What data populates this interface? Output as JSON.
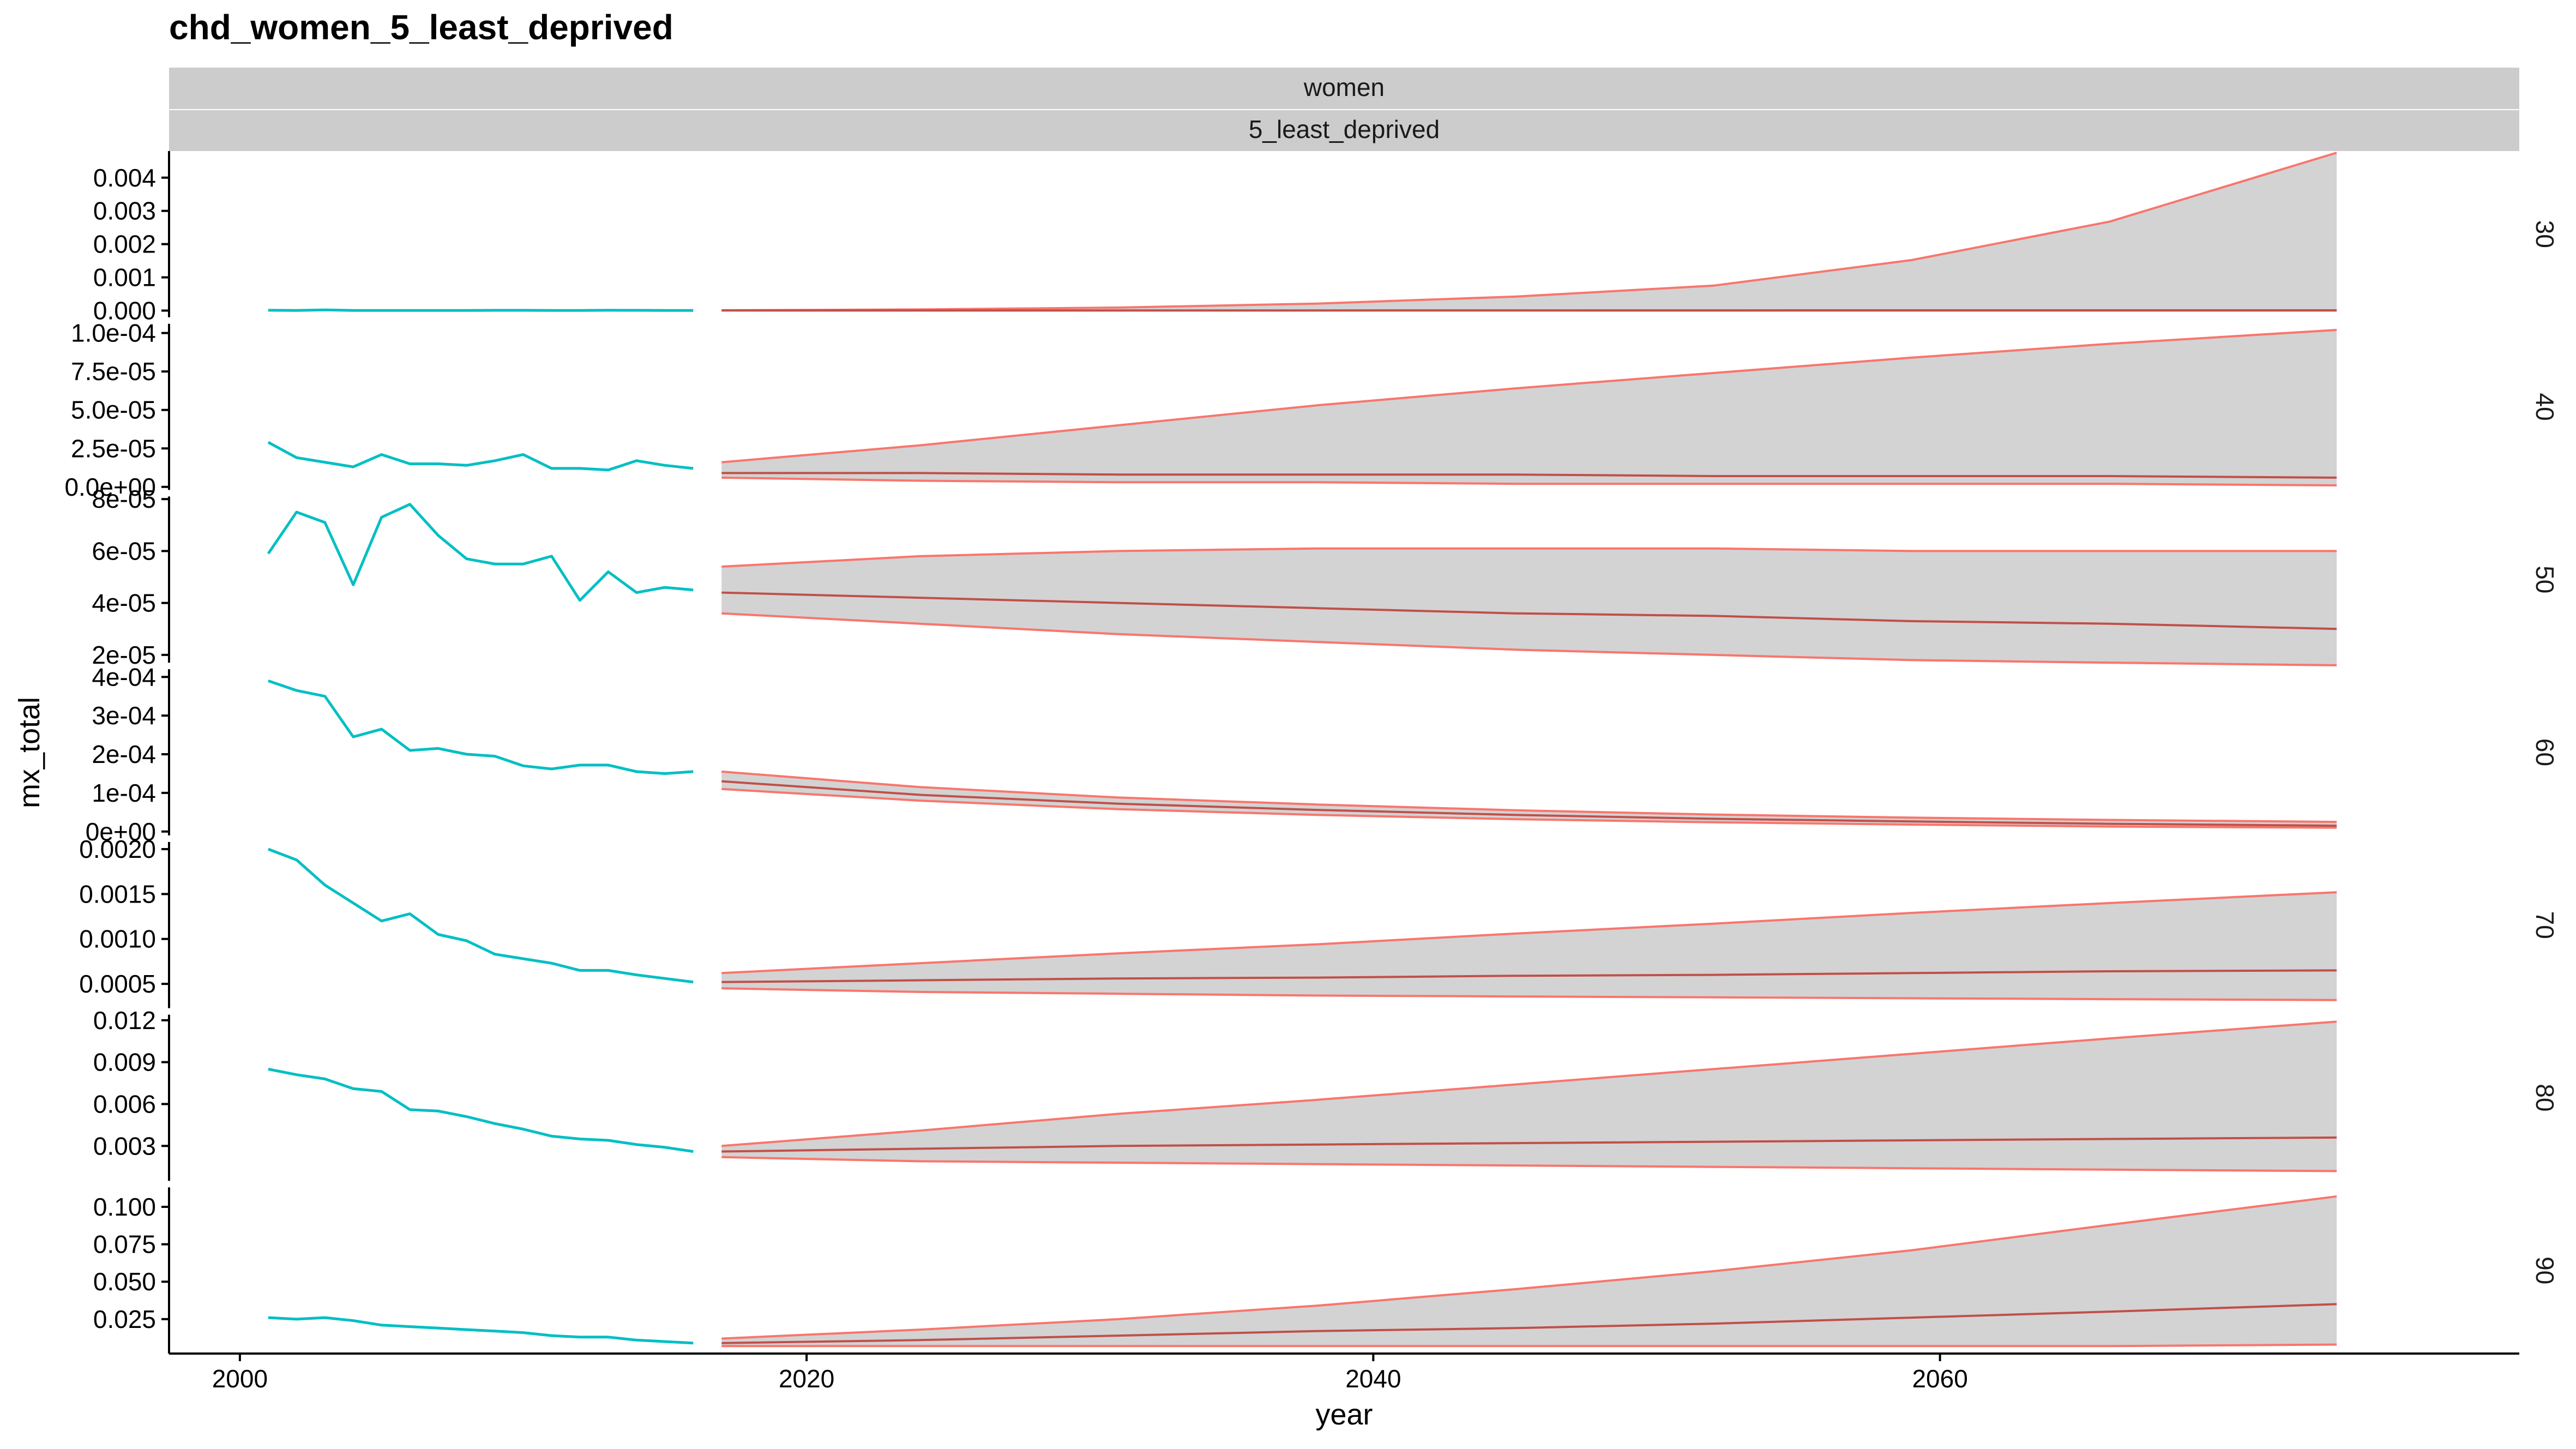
{
  "chart_data": {
    "type": "line",
    "title": "chd_women_5_least_deprived",
    "strip_top": [
      "women",
      "5_least_deprived"
    ],
    "xlabel": "year",
    "ylabel": "mx_total",
    "xlim": [
      1997.5,
      2076.5
    ],
    "x_ticks": [
      2000,
      2020,
      2040,
      2060
    ],
    "x_tick_labels": [
      "2000",
      "2020",
      "2040",
      "2060"
    ],
    "colors": {
      "observed": "#00BFC4",
      "forecast": "#F8766D",
      "band": "#D3D3D3",
      "strip": "#CCCCCC"
    },
    "panels": [
      {
        "label": "30",
        "ylim": [
          -0.0002,
          0.0048
        ],
        "y_ticks": [
          0,
          0.001,
          0.002,
          0.003,
          0.004
        ],
        "y_tick_labels": [
          "0.000",
          "0.001",
          "0.002",
          "0.003",
          "0.004"
        ],
        "observed": {
          "x": [
            2001,
            2002,
            2003,
            2004,
            2005,
            2006,
            2007,
            2008,
            2009,
            2010,
            2011,
            2012,
            2013,
            2014,
            2015,
            2016
          ],
          "y": [
            1e-05,
            5e-06,
            2e-05,
            5e-06,
            5e-06,
            5e-06,
            5e-06,
            5e-06,
            8e-06,
            8e-06,
            5e-06,
            5e-06,
            1e-05,
            8e-06,
            5e-06,
            5e-06
          ]
        },
        "forecast": {
          "x": [
            2017,
            2024,
            2031,
            2038,
            2045,
            2052,
            2059,
            2066,
            2074
          ],
          "median": [
            5e-06,
            5e-06,
            6e-06,
            6e-06,
            7e-06,
            7e-06,
            8e-06,
            8e-06,
            9e-06
          ],
          "lower": [
            3e-06,
            2e-06,
            2e-06,
            2e-06,
            2e-06,
            1e-06,
            1e-06,
            1e-06,
            1e-06
          ],
          "upper": [
            1e-05,
            3.5e-05,
            9e-05,
            0.00021,
            0.00042,
            0.00075,
            0.00152,
            0.00268,
            0.00475
          ]
        }
      },
      {
        "label": "40",
        "ylim": [
          -2e-06,
          0.000106
        ],
        "y_ticks": [
          0,
          2.5e-05,
          5e-05,
          7.5e-05,
          0.0001
        ],
        "y_tick_labels": [
          "0.0e+00",
          "2.5e-05",
          "5.0e-05",
          "7.5e-05",
          "1.0e-04"
        ],
        "observed": {
          "x": [
            2001,
            2002,
            2003,
            2004,
            2005,
            2006,
            2007,
            2008,
            2009,
            2010,
            2011,
            2012,
            2013,
            2014,
            2015,
            2016
          ],
          "y": [
            2.9e-05,
            1.9e-05,
            1.6e-05,
            1.3e-05,
            2.1e-05,
            1.5e-05,
            1.5e-05,
            1.4e-05,
            1.7e-05,
            2.1e-05,
            1.2e-05,
            1.2e-05,
            1.1e-05,
            1.7e-05,
            1.4e-05,
            1.2e-05
          ]
        },
        "forecast": {
          "x": [
            2017,
            2024,
            2031,
            2038,
            2045,
            2052,
            2059,
            2066,
            2074
          ],
          "median": [
            9e-06,
            9e-06,
            8e-06,
            8e-06,
            8e-06,
            7e-06,
            7e-06,
            7e-06,
            6e-06
          ],
          "lower": [
            6e-06,
            4e-06,
            3e-06,
            3e-06,
            2e-06,
            2e-06,
            2e-06,
            2e-06,
            1e-06
          ],
          "upper": [
            1.6e-05,
            2.7e-05,
            4e-05,
            5.3e-05,
            6.4e-05,
            7.4e-05,
            8.4e-05,
            9.3e-05,
            0.000102
          ]
        }
      },
      {
        "label": "50",
        "ylim": [
          1.7e-05,
          8.1e-05
        ],
        "y_ticks": [
          2e-05,
          4e-05,
          6e-05,
          8e-05
        ],
        "y_tick_labels": [
          "2e-05",
          "4e-05",
          "6e-05",
          "8e-05"
        ],
        "observed": {
          "x": [
            2001,
            2002,
            2003,
            2004,
            2005,
            2006,
            2007,
            2008,
            2009,
            2010,
            2011,
            2012,
            2013,
            2014,
            2015,
            2016
          ],
          "y": [
            5.9e-05,
            7.5e-05,
            7.1e-05,
            4.7e-05,
            7.3e-05,
            7.8e-05,
            6.6e-05,
            5.7e-05,
            5.5e-05,
            5.5e-05,
            5.8e-05,
            4.1e-05,
            5.2e-05,
            4.4e-05,
            4.6e-05,
            4.5e-05
          ]
        },
        "forecast": {
          "x": [
            2017,
            2024,
            2031,
            2038,
            2045,
            2052,
            2059,
            2066,
            2074
          ],
          "median": [
            4.4e-05,
            4.2e-05,
            4e-05,
            3.8e-05,
            3.6e-05,
            3.5e-05,
            3.3e-05,
            3.2e-05,
            3e-05
          ],
          "lower": [
            3.6e-05,
            3.2e-05,
            2.8e-05,
            2.5e-05,
            2.2e-05,
            2e-05,
            1.8e-05,
            1.7e-05,
            1.6e-05
          ],
          "upper": [
            5.4e-05,
            5.8e-05,
            6e-05,
            6.1e-05,
            6.1e-05,
            6.1e-05,
            6e-05,
            6e-05,
            6e-05
          ]
        }
      },
      {
        "label": "60",
        "ylim": [
          -1e-05,
          0.00042
        ],
        "y_ticks": [
          0,
          0.0001,
          0.0002,
          0.0003,
          0.0004
        ],
        "y_tick_labels": [
          "0e+00",
          "1e-04",
          "2e-04",
          "3e-04",
          "4e-04"
        ],
        "observed": {
          "x": [
            2001,
            2002,
            2003,
            2004,
            2005,
            2006,
            2007,
            2008,
            2009,
            2010,
            2011,
            2012,
            2013,
            2014,
            2015,
            2016
          ],
          "y": [
            0.00039,
            0.000365,
            0.00035,
            0.000245,
            0.000265,
            0.00021,
            0.000215,
            0.0002,
            0.000195,
            0.00017,
            0.000162,
            0.000172,
            0.000172,
            0.000155,
            0.00015,
            0.000155
          ]
        },
        "forecast": {
          "x": [
            2017,
            2024,
            2031,
            2038,
            2045,
            2052,
            2059,
            2066,
            2074
          ],
          "median": [
            0.00013,
            9.5e-05,
            7.2e-05,
            5.6e-05,
            4.3e-05,
            3.3e-05,
            2.6e-05,
            2e-05,
            1.5e-05
          ],
          "lower": [
            0.00011,
            8e-05,
            5.8e-05,
            4.3e-05,
            3.2e-05,
            2.4e-05,
            1.8e-05,
            1.3e-05,
            1e-05
          ],
          "upper": [
            0.000155,
            0.000115,
            8.8e-05,
            7e-05,
            5.5e-05,
            4.4e-05,
            3.6e-05,
            3e-05,
            2.5e-05
          ]
        }
      },
      {
        "label": "70",
        "ylim": [
          0.00023,
          0.00208
        ],
        "y_ticks": [
          0.0005,
          0.001,
          0.0015,
          0.002
        ],
        "y_tick_labels": [
          "0.0005",
          "0.0010",
          "0.0015",
          "0.0020"
        ],
        "observed": {
          "x": [
            2001,
            2002,
            2003,
            2004,
            2005,
            2006,
            2007,
            2008,
            2009,
            2010,
            2011,
            2012,
            2013,
            2014,
            2015,
            2016
          ],
          "y": [
            0.002,
            0.00188,
            0.0016,
            0.0014,
            0.0012,
            0.00128,
            0.00105,
            0.00098,
            0.00083,
            0.00078,
            0.00073,
            0.00065,
            0.00065,
            0.0006,
            0.00056,
            0.00052
          ]
        },
        "forecast": {
          "x": [
            2017,
            2024,
            2031,
            2038,
            2045,
            2052,
            2059,
            2066,
            2074
          ],
          "median": [
            0.00052,
            0.00054,
            0.00056,
            0.00057,
            0.00059,
            0.0006,
            0.00062,
            0.00064,
            0.00065
          ],
          "lower": [
            0.00045,
            0.00041,
            0.00039,
            0.00037,
            0.00036,
            0.00035,
            0.00034,
            0.00033,
            0.00032
          ],
          "upper": [
            0.00062,
            0.00073,
            0.00084,
            0.00094,
            0.00106,
            0.00117,
            0.00129,
            0.0014,
            0.00152
          ]
        }
      },
      {
        "label": "80",
        "ylim": [
          0.0005,
          0.0124
        ],
        "y_ticks": [
          0.003,
          0.006,
          0.009,
          0.012
        ],
        "y_tick_labels": [
          "0.003",
          "0.006",
          "0.009",
          "0.012"
        ],
        "observed": {
          "x": [
            2001,
            2002,
            2003,
            2004,
            2005,
            2006,
            2007,
            2008,
            2009,
            2010,
            2011,
            2012,
            2013,
            2014,
            2015,
            2016
          ],
          "y": [
            0.0085,
            0.0081,
            0.0078,
            0.0071,
            0.0069,
            0.0056,
            0.0055,
            0.0051,
            0.0046,
            0.0042,
            0.0037,
            0.0035,
            0.0034,
            0.0031,
            0.0029,
            0.0026
          ]
        },
        "forecast": {
          "x": [
            2017,
            2024,
            2031,
            2038,
            2045,
            2052,
            2059,
            2066,
            2074
          ],
          "median": [
            0.0026,
            0.0028,
            0.003,
            0.0031,
            0.0032,
            0.0033,
            0.0034,
            0.0035,
            0.0036
          ],
          "lower": [
            0.0022,
            0.0019,
            0.0018,
            0.0017,
            0.0016,
            0.0015,
            0.0014,
            0.0013,
            0.0012
          ],
          "upper": [
            0.003,
            0.0041,
            0.0053,
            0.0063,
            0.0074,
            0.0085,
            0.0096,
            0.0107,
            0.0119
          ]
        }
      },
      {
        "label": "90",
        "ylim": [
          0.002,
          0.113
        ],
        "y_ticks": [
          0.025,
          0.05,
          0.075,
          0.1
        ],
        "y_tick_labels": [
          "0.025",
          "0.050",
          "0.075",
          "0.100"
        ],
        "observed": {
          "x": [
            2001,
            2002,
            2003,
            2004,
            2005,
            2006,
            2007,
            2008,
            2009,
            2010,
            2011,
            2012,
            2013,
            2014,
            2015,
            2016
          ],
          "y": [
            0.026,
            0.025,
            0.026,
            0.024,
            0.021,
            0.02,
            0.019,
            0.018,
            0.017,
            0.016,
            0.014,
            0.013,
            0.013,
            0.011,
            0.01,
            0.009
          ]
        },
        "forecast": {
          "x": [
            2017,
            2024,
            2031,
            2038,
            2045,
            2052,
            2059,
            2066,
            2074
          ],
          "median": [
            0.009,
            0.011,
            0.014,
            0.017,
            0.019,
            0.022,
            0.026,
            0.03,
            0.035
          ],
          "lower": [
            0.007,
            0.007,
            0.007,
            0.007,
            0.007,
            0.007,
            0.007,
            0.007,
            0.008
          ],
          "upper": [
            0.012,
            0.018,
            0.025,
            0.034,
            0.045,
            0.057,
            0.071,
            0.088,
            0.107
          ]
        }
      }
    ]
  }
}
